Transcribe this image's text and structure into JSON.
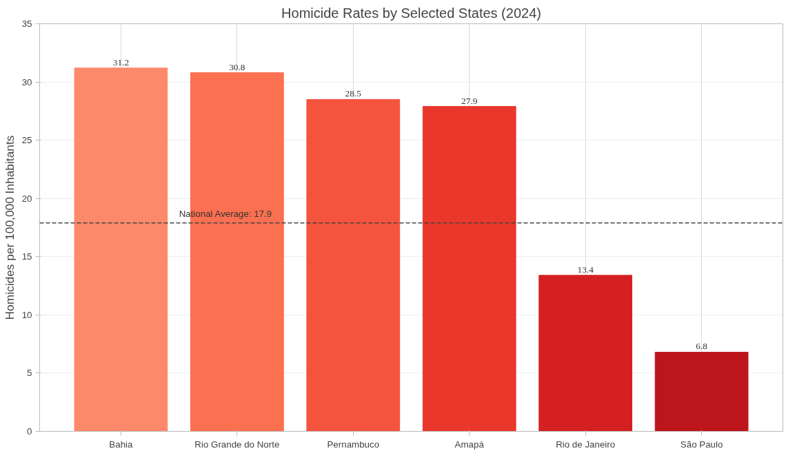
{
  "chart_data": {
    "type": "bar",
    "title": "Homicide Rates by Selected States (2024)",
    "ylabel": "Homicides per 100,000 Inhabitants",
    "categories": [
      "Bahia",
      "Rio Grande do Norte",
      "Pernambuco",
      "Amapá",
      "Rio de Janeiro",
      "São Paulo"
    ],
    "values": [
      31.2,
      30.8,
      28.5,
      27.9,
      13.4,
      6.8
    ],
    "colors": [
      "#fc8a6a",
      "#fb7050",
      "#f4533d",
      "#e9372b",
      "#d42022",
      "#bd151c"
    ],
    "data_labels": true,
    "ylim": [
      0,
      35
    ],
    "yticks": [
      0,
      5,
      10,
      15,
      20,
      25,
      30,
      35
    ],
    "grid": true,
    "ref_lines": [
      {
        "axis": "y",
        "value": 17.9,
        "label": "National Average: 17.9",
        "color": "#444444",
        "line_style": "dashed"
      }
    ]
  }
}
